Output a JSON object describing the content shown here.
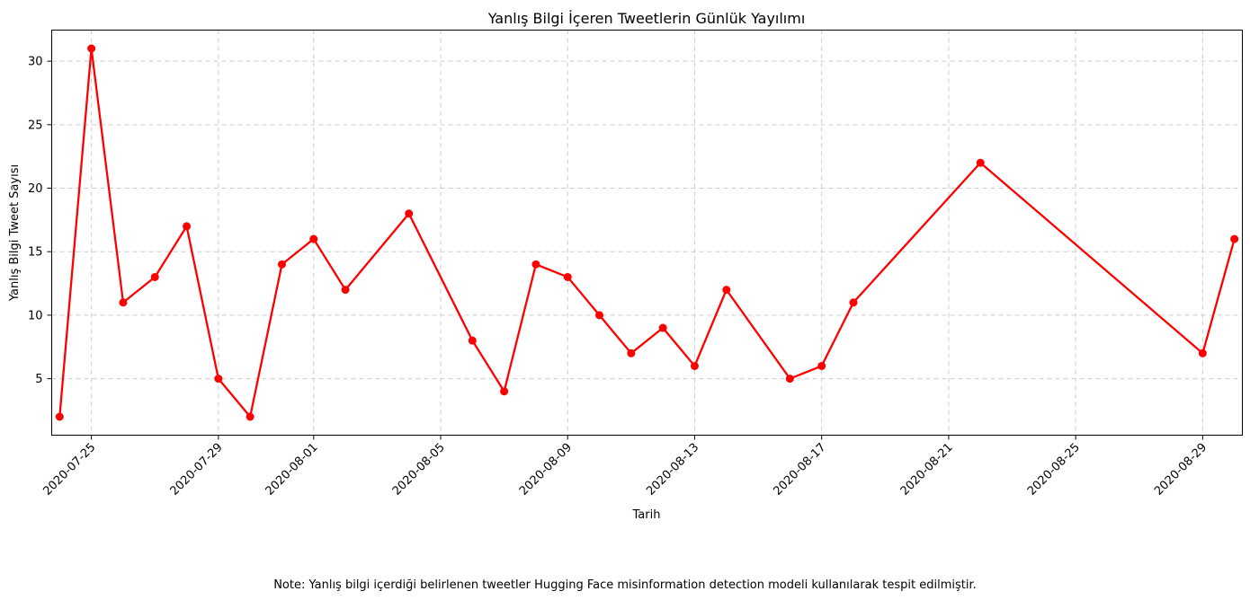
{
  "chart_data": {
    "type": "line",
    "title": "Yanlış Bilgi İçeren Tweetlerin Günlük Yayılımı",
    "xlabel": "Tarih",
    "ylabel": "Yanlış Bilgi Tweet Sayısı",
    "note": "Note: Yanlış bilgi içerdiği belirlenen tweetler Hugging Face misinformation detection modeli kullanılarak tespit edilmiştir.",
    "x_ticks": [
      "2020-07-25",
      "2020-07-29",
      "2020-08-01",
      "2020-08-05",
      "2020-08-09",
      "2020-08-13",
      "2020-08-17",
      "2020-08-21",
      "2020-08-25",
      "2020-08-29"
    ],
    "y_ticks": [
      5,
      10,
      15,
      20,
      25,
      30
    ],
    "xlim": [
      "2020-07-23",
      "2020-08-31"
    ],
    "ylim": [
      0.55,
      32.45
    ],
    "grid": true,
    "color": "#ff0000",
    "series": [
      {
        "x": [
          "2020-07-24",
          "2020-07-25",
          "2020-07-26",
          "2020-07-27",
          "2020-07-28",
          "2020-07-29",
          "2020-07-30",
          "2020-07-31",
          "2020-08-01",
          "2020-08-02",
          "2020-08-04",
          "2020-08-06",
          "2020-08-07",
          "2020-08-08",
          "2020-08-09",
          "2020-08-10",
          "2020-08-11",
          "2020-08-12",
          "2020-08-13",
          "2020-08-14",
          "2020-08-16",
          "2020-08-17",
          "2020-08-18",
          "2020-08-22",
          "2020-08-29",
          "2020-08-30"
        ],
        "values": [
          2,
          31,
          11,
          13,
          17,
          5,
          2,
          14,
          16,
          12,
          18,
          8,
          4,
          14,
          13,
          10,
          7,
          9,
          6,
          12,
          5,
          6,
          11,
          22,
          7,
          16
        ]
      }
    ]
  }
}
